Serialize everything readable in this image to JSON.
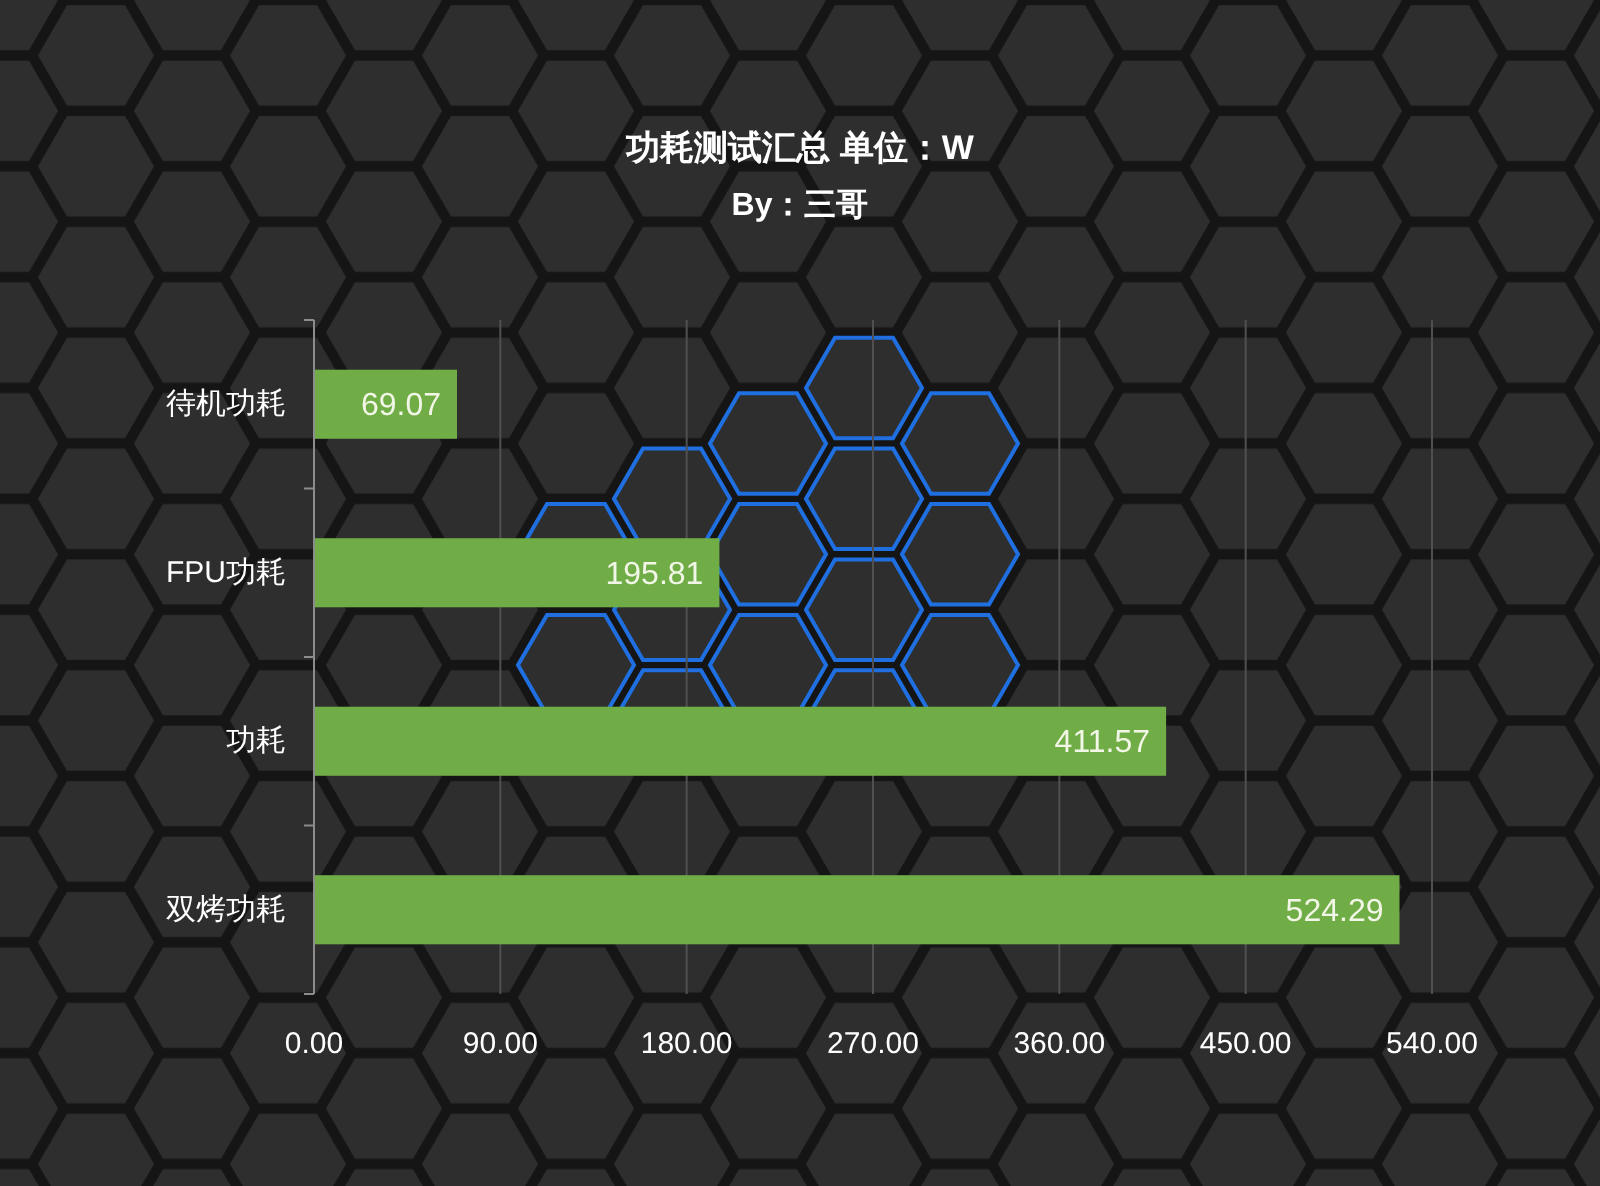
{
  "chart_data": {
    "type": "bar",
    "orientation": "horizontal",
    "title": "功耗测试汇总 单位：W",
    "subtitle": "By：三哥",
    "categories": [
      "待机功耗",
      "FPU功耗",
      "功耗",
      "双烤功耗"
    ],
    "values": [
      69.07,
      195.81,
      411.57,
      524.29
    ],
    "color": "#70ad47",
    "xlim": [
      0,
      540
    ],
    "xticks": [
      {
        "value": 0,
        "label": "0.00"
      },
      {
        "value": 90,
        "label": "90.00"
      },
      {
        "value": 180,
        "label": "180.00"
      },
      {
        "value": 270,
        "label": "270.00"
      },
      {
        "value": 360,
        "label": "360.00"
      },
      {
        "value": 450,
        "label": "450.00"
      },
      {
        "value": 540,
        "label": "540.00"
      }
    ],
    "grid": "x",
    "data_labels": true
  }
}
